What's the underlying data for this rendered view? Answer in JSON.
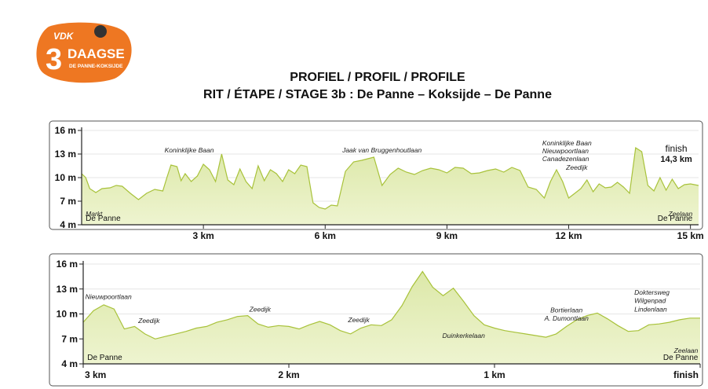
{
  "logo": {
    "brand": "VDK",
    "name_number": "3",
    "name_word": "DAAGSE",
    "subline": "DE PANNE-KOKSIJDE",
    "colors": {
      "orange": "#ee7722",
      "white": "#ffffff",
      "dark": "#333333"
    }
  },
  "header": {
    "title_line1": "PROFIEL / PROFIL / PROFILE",
    "title_line2": "RIT / ÉTAPE / STAGE 3b : De Panne – Koksijde – De Panne"
  },
  "colors": {
    "fill": "#dce8a8",
    "fill_light": "#eef4d0",
    "stroke": "#a8c23a",
    "frame": "#555555"
  },
  "chart_data": [
    {
      "type": "area",
      "y_ticks": [
        16,
        13,
        10,
        7,
        4
      ],
      "y_unit": "m",
      "ylim": [
        4,
        16
      ],
      "xlim": [
        0,
        15.2
      ],
      "x_ticks": [
        {
          "value": 3,
          "label": "3 km"
        },
        {
          "value": 6,
          "label": "6 km"
        },
        {
          "value": 9,
          "label": "9 km"
        },
        {
          "value": 12,
          "label": "12 km"
        },
        {
          "value": 15,
          "label": "15 km"
        }
      ],
      "x": [
        0,
        0.1,
        0.2,
        0.35,
        0.5,
        0.7,
        0.85,
        1.0,
        1.2,
        1.4,
        1.6,
        1.8,
        2.0,
        2.1,
        2.2,
        2.35,
        2.45,
        2.55,
        2.7,
        2.85,
        3.0,
        3.15,
        3.3,
        3.45,
        3.6,
        3.75,
        3.9,
        4.05,
        4.2,
        4.35,
        4.5,
        4.65,
        4.8,
        4.95,
        5.1,
        5.25,
        5.4,
        5.55,
        5.7,
        5.85,
        6.0,
        6.15,
        6.3,
        6.5,
        6.7,
        6.9,
        7.05,
        7.2,
        7.4,
        7.6,
        7.8,
        8.0,
        8.2,
        8.4,
        8.6,
        8.8,
        9.0,
        9.2,
        9.4,
        9.6,
        9.8,
        10.0,
        10.2,
        10.4,
        10.6,
        10.8,
        11.0,
        11.2,
        11.4,
        11.55,
        11.7,
        11.85,
        12.0,
        12.15,
        12.3,
        12.45,
        12.6,
        12.75,
        12.9,
        13.05,
        13.2,
        13.35,
        13.5,
        13.65,
        13.8,
        13.95,
        14.1,
        14.25,
        14.4,
        14.55,
        14.7,
        14.85,
        15.0,
        15.2
      ],
      "y": [
        10.5,
        10.0,
        8.6,
        8.1,
        8.6,
        8.7,
        9.0,
        8.9,
        8.0,
        7.2,
        8.0,
        8.5,
        8.3,
        10.0,
        11.6,
        11.4,
        9.6,
        10.5,
        9.5,
        10.2,
        11.7,
        11.0,
        9.5,
        13.0,
        9.7,
        9.1,
        11.1,
        9.5,
        8.6,
        11.5,
        9.6,
        11.0,
        10.5,
        9.5,
        11.0,
        10.5,
        11.6,
        11.4,
        6.8,
        6.2,
        6.0,
        6.5,
        6.4,
        10.8,
        12.0,
        12.2,
        12.4,
        12.6,
        9.0,
        10.4,
        11.2,
        10.7,
        10.4,
        10.9,
        11.2,
        11.0,
        10.6,
        11.3,
        11.2,
        10.5,
        10.6,
        10.9,
        11.1,
        10.7,
        11.3,
        10.9,
        8.8,
        8.5,
        7.4,
        9.5,
        11.0,
        9.5,
        7.4,
        8.0,
        8.6,
        9.7,
        8.2,
        9.2,
        8.7,
        8.8,
        9.4,
        8.8,
        8.0,
        13.8,
        13.3,
        9.0,
        8.3,
        10.0,
        8.4,
        9.8,
        8.6,
        9.1,
        9.2,
        9.0
      ],
      "annotations": [
        {
          "text": "Koninklijke Baan",
          "x": 2.65,
          "y": 13.2,
          "anchor": "middle"
        },
        {
          "text": "Jaak van Bruggenhoutlaan",
          "x": 7.4,
          "y": 13.2,
          "anchor": "middle"
        },
        {
          "text": "Koninklijke Baan",
          "x": 11.35,
          "y": 14.1,
          "anchor": "start"
        },
        {
          "text": "Nieuwpoortlaan",
          "x": 11.35,
          "y": 13.1,
          "anchor": "start"
        },
        {
          "text": "Canadezenlaan",
          "x": 11.35,
          "y": 12.1,
          "anchor": "start"
        },
        {
          "text": "Zeedijk",
          "x": 12.2,
          "y": 11.0,
          "anchor": "middle"
        },
        {
          "text": "Markt",
          "x": 0.1,
          "y": 5.1,
          "anchor": "start"
        },
        {
          "text": "Zeelaan",
          "x": 15.05,
          "y": 5.1,
          "anchor": "end"
        }
      ],
      "place_labels": [
        {
          "text": "De Panne",
          "x": 0.1,
          "y": 4.3,
          "anchor": "start"
        },
        {
          "text": "De Panne",
          "x": 15.05,
          "y": 4.3,
          "anchor": "end"
        }
      ],
      "finish_labels": [
        {
          "text": "finish",
          "x": 14.65,
          "y": 13.3
        },
        {
          "text": "14,3 km",
          "x": 14.65,
          "y": 12.0
        }
      ]
    },
    {
      "type": "area",
      "y_ticks": [
        16,
        13,
        10,
        7,
        4
      ],
      "y_unit": "m",
      "ylim": [
        4,
        16
      ],
      "xlim": [
        0,
        3.0
      ],
      "x_ticks": [
        {
          "value": 0,
          "label": "3 km"
        },
        {
          "value": 1,
          "label": "2 km"
        },
        {
          "value": 2,
          "label": "1 km"
        },
        {
          "value": 3,
          "label": "finish"
        }
      ],
      "x": [
        0,
        0.05,
        0.1,
        0.15,
        0.2,
        0.25,
        0.3,
        0.35,
        0.4,
        0.45,
        0.5,
        0.55,
        0.6,
        0.65,
        0.7,
        0.75,
        0.8,
        0.85,
        0.9,
        0.95,
        1.0,
        1.05,
        1.1,
        1.15,
        1.2,
        1.25,
        1.3,
        1.35,
        1.4,
        1.45,
        1.5,
        1.55,
        1.6,
        1.65,
        1.7,
        1.75,
        1.8,
        1.85,
        1.9,
        1.95,
        2.0,
        2.05,
        2.1,
        2.15,
        2.2,
        2.25,
        2.3,
        2.35,
        2.4,
        2.45,
        2.5,
        2.55,
        2.6,
        2.65,
        2.7,
        2.75,
        2.8,
        2.85,
        2.9,
        2.95,
        3.0
      ],
      "y": [
        9.0,
        10.4,
        11.1,
        10.6,
        8.2,
        8.5,
        7.6,
        7.0,
        7.3,
        7.6,
        7.9,
        8.3,
        8.5,
        9.0,
        9.3,
        9.7,
        9.8,
        8.8,
        8.4,
        8.6,
        8.5,
        8.2,
        8.7,
        9.1,
        8.7,
        8.0,
        7.6,
        8.3,
        8.7,
        8.6,
        9.3,
        11.0,
        13.3,
        15.1,
        13.2,
        12.2,
        13.1,
        11.5,
        9.8,
        8.7,
        8.3,
        8.0,
        7.8,
        7.6,
        7.4,
        7.2,
        7.6,
        8.5,
        9.3,
        9.8,
        10.1,
        9.4,
        8.6,
        7.9,
        8.0,
        8.7,
        8.8,
        9.0,
        9.3,
        9.5,
        9.5
      ],
      "annotations": [
        {
          "text": "Nieuwpoortlaan",
          "x": 0.01,
          "y": 11.8,
          "anchor": "start"
        },
        {
          "text": "Zeedijk",
          "x": 0.32,
          "y": 8.9,
          "anchor": "middle"
        },
        {
          "text": "Zeedijk",
          "x": 0.86,
          "y": 10.3,
          "anchor": "middle"
        },
        {
          "text": "Zeedijk",
          "x": 1.34,
          "y": 9.0,
          "anchor": "middle"
        },
        {
          "text": "Duinkerkelaan",
          "x": 1.85,
          "y": 7.1,
          "anchor": "middle"
        },
        {
          "text": "Bortierlaan",
          "x": 2.35,
          "y": 10.2,
          "anchor": "middle"
        },
        {
          "text": "A. Dumontlaan",
          "x": 2.35,
          "y": 9.2,
          "anchor": "middle"
        },
        {
          "text": "Doktersweg",
          "x": 2.68,
          "y": 12.3,
          "anchor": "start"
        },
        {
          "text": "Wilgenpad",
          "x": 2.68,
          "y": 11.3,
          "anchor": "start"
        },
        {
          "text": "Lindenlaan",
          "x": 2.68,
          "y": 10.3,
          "anchor": "start"
        },
        {
          "text": "Zeelaan",
          "x": 2.99,
          "y": 5.3,
          "anchor": "end"
        }
      ],
      "place_labels": [
        {
          "text": "De Panne",
          "x": 0.02,
          "y": 4.3,
          "anchor": "start"
        },
        {
          "text": "De Panne",
          "x": 2.99,
          "y": 4.3,
          "anchor": "end"
        }
      ],
      "finish_labels": []
    }
  ]
}
